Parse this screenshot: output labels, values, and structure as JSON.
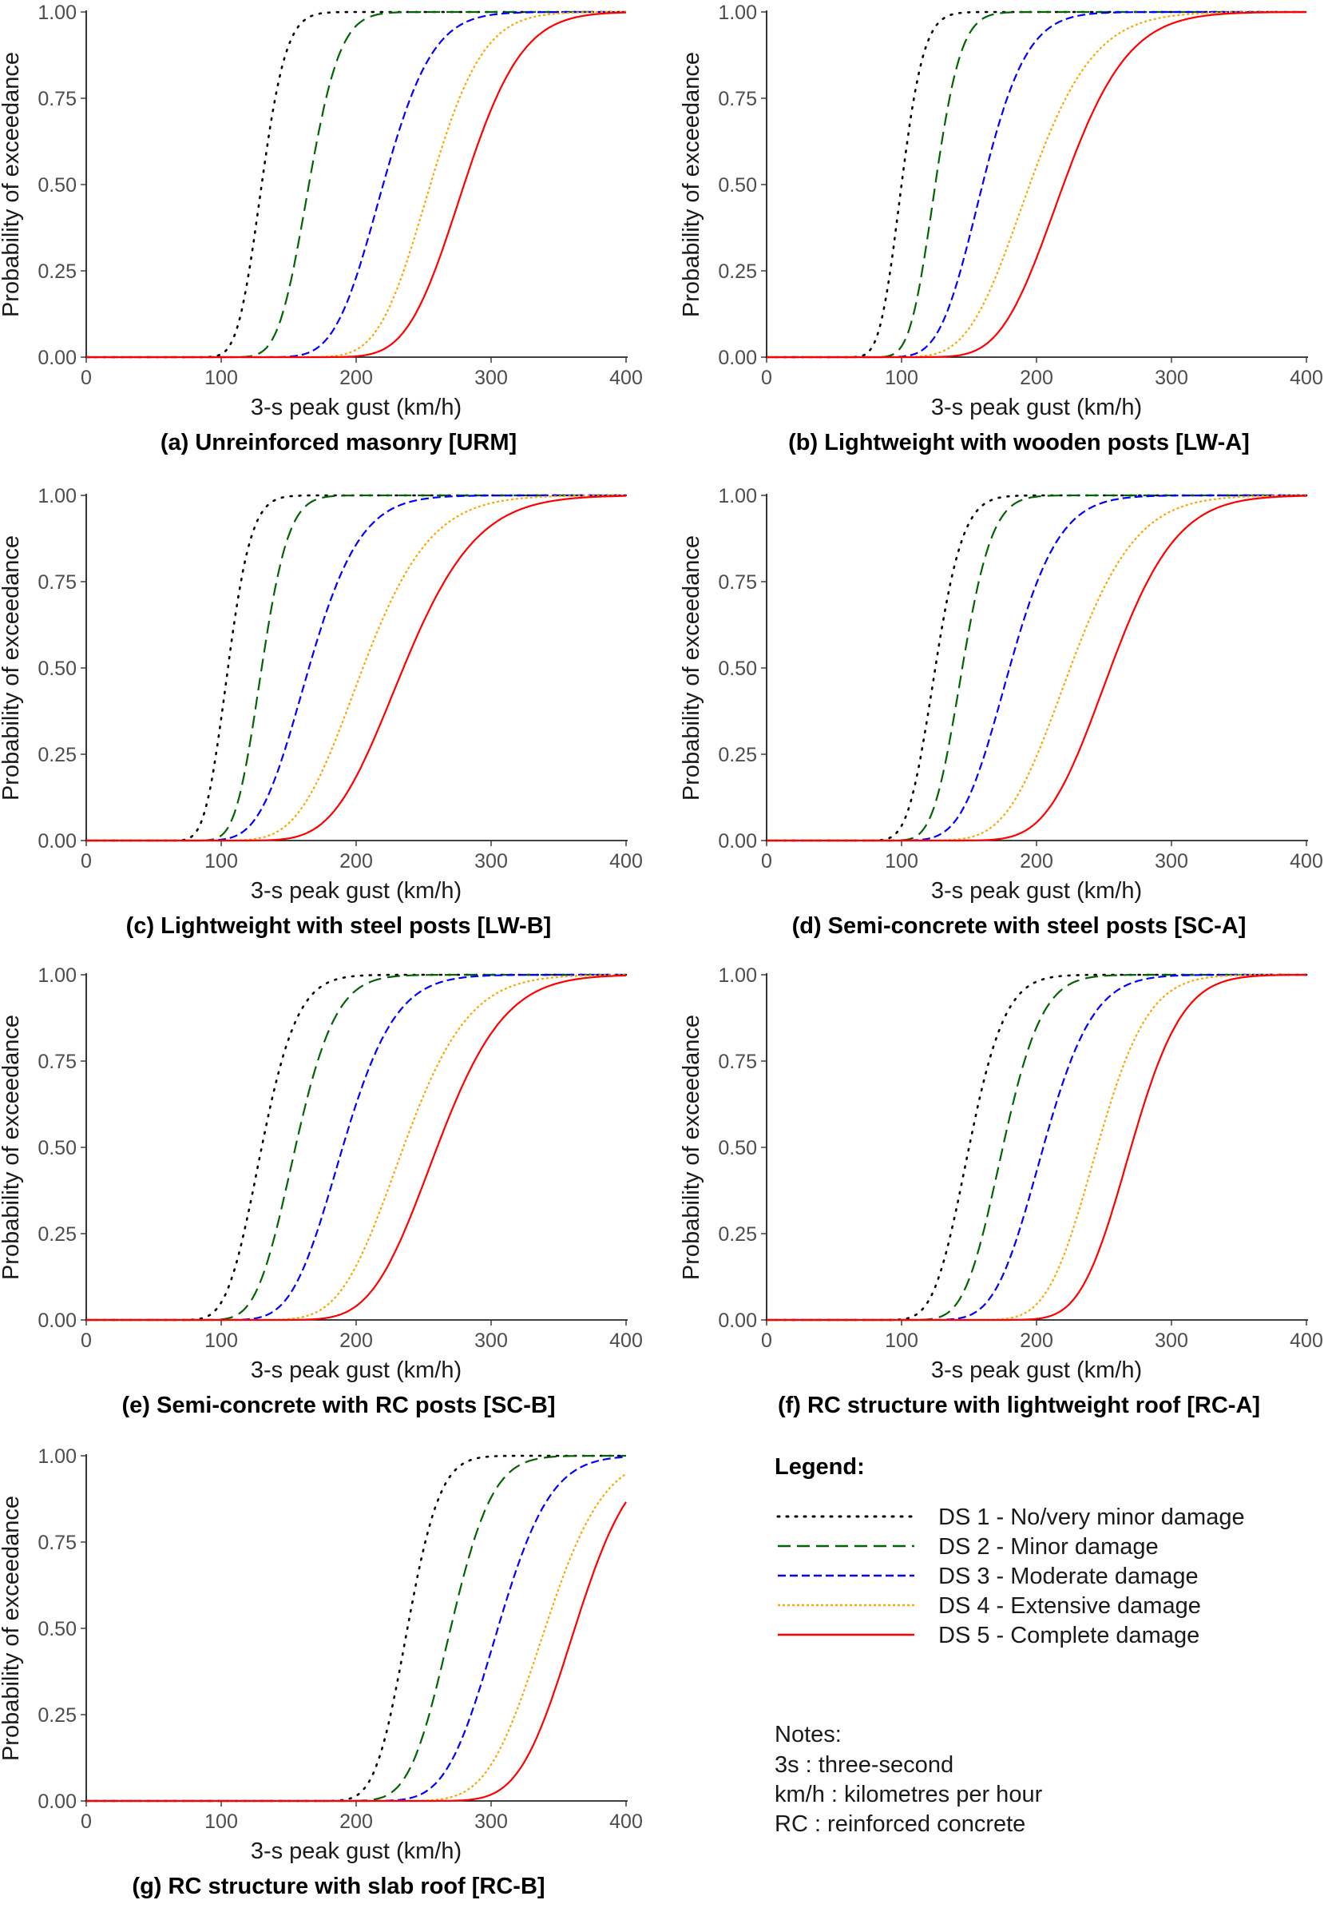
{
  "figure": {
    "legend_title": "Legend:",
    "notes_title": "Notes:",
    "notes": [
      "3s : three-second",
      "km/h : kilometres per hour",
      "RC : reinforced concrete"
    ]
  },
  "styles": {
    "DS1": {
      "color": "#000000",
      "dash": "2,9",
      "label": "DS 1 - No/very minor damage"
    },
    "DS2": {
      "color": "#006400",
      "dash": "16,8",
      "label": "DS 2 - Minor damage"
    },
    "DS3": {
      "color": "#0000FF",
      "dash": "10,5",
      "label": "DS 3 - Moderate damage"
    },
    "DS4": {
      "color": "#FFA500",
      "dash": "3,3",
      "label": "DS 4 - Extensive damage"
    },
    "DS5": {
      "color": "#FF0000",
      "dash": "",
      "label": "DS 5 - Complete damage"
    }
  },
  "chart_data": [
    {
      "type": "line",
      "panel": "a",
      "title": "(a) Unreinforced masonry [URM]",
      "xlabel": "3-s peak gust (km/h)",
      "ylabel": "Probability of exceedance",
      "xlim": [
        0,
        400
      ],
      "ylim": [
        0,
        1
      ],
      "xticks": [
        "0",
        "100",
        "200",
        "300",
        "400"
      ],
      "yticks": [
        "0.00",
        "0.25",
        "0.50",
        "0.75",
        "1.00"
      ],
      "series": [
        {
          "name": "DS 1 - No/very minor damage",
          "style": "DS1",
          "median": 130,
          "beta": 0.11
        },
        {
          "name": "DS 2 - Minor damage",
          "style": "DS2",
          "median": 165,
          "beta": 0.11
        },
        {
          "name": "DS 3 - Moderate damage",
          "style": "DS3",
          "median": 220,
          "beta": 0.13
        },
        {
          "name": "DS 4 - Extensive damage",
          "style": "DS4",
          "median": 255,
          "beta": 0.12
        },
        {
          "name": "DS 5 - Complete damage",
          "style": "DS5",
          "median": 280,
          "beta": 0.12
        }
      ]
    },
    {
      "type": "line",
      "panel": "b",
      "title": "(b) Lightweight with wooden posts [LW-A]",
      "xlabel": "3-s peak gust (km/h)",
      "ylabel": "Probability of exceedance",
      "xlim": [
        0,
        400
      ],
      "ylim": [
        0,
        1
      ],
      "xticks": [
        "0",
        "100",
        "200",
        "300",
        "400"
      ],
      "yticks": [
        "0.00",
        "0.25",
        "0.50",
        "0.75",
        "1.00"
      ],
      "series": [
        {
          "name": "DS 1 - No/very minor damage",
          "style": "DS1",
          "median": 100,
          "beta": 0.13
        },
        {
          "name": "DS 2 - Minor damage",
          "style": "DS2",
          "median": 125,
          "beta": 0.12
        },
        {
          "name": "DS 3 - Moderate damage",
          "style": "DS3",
          "median": 160,
          "beta": 0.16
        },
        {
          "name": "DS 4 - Extensive damage",
          "style": "DS4",
          "median": 195,
          "beta": 0.19
        },
        {
          "name": "DS 5 - Complete damage",
          "style": "DS5",
          "median": 220,
          "beta": 0.17
        }
      ]
    },
    {
      "type": "line",
      "panel": "c",
      "title": "(c) Lightweight with steel posts [LW-B]",
      "xlabel": "3-s peak gust (km/h)",
      "ylabel": "Probability of exceedance",
      "xlim": [
        0,
        400
      ],
      "ylim": [
        0,
        1
      ],
      "xticks": [
        "0",
        "100",
        "200",
        "300",
        "400"
      ],
      "yticks": [
        "0.00",
        "0.25",
        "0.50",
        "0.75",
        "1.00"
      ],
      "series": [
        {
          "name": "DS 1 - No/very minor damage",
          "style": "DS1",
          "median": 105,
          "beta": 0.13
        },
        {
          "name": "DS 2 - Minor damage",
          "style": "DS2",
          "median": 130,
          "beta": 0.12
        },
        {
          "name": "DS 3 - Moderate damage",
          "style": "DS3",
          "median": 165,
          "beta": 0.18
        },
        {
          "name": "DS 4 - Extensive damage",
          "style": "DS4",
          "median": 205,
          "beta": 0.19
        },
        {
          "name": "DS 5 - Complete damage",
          "style": "DS5",
          "median": 235,
          "beta": 0.18
        }
      ]
    },
    {
      "type": "line",
      "panel": "d",
      "title": "(d) Semi-concrete with steel posts [SC-A]",
      "xlabel": "3-s peak gust (km/h)",
      "ylabel": "Probability of exceedance",
      "xlim": [
        0,
        400
      ],
      "ylim": [
        0,
        1
      ],
      "xticks": [
        "0",
        "100",
        "200",
        "300",
        "400"
      ],
      "yticks": [
        "0.00",
        "0.25",
        "0.50",
        "0.75",
        "1.00"
      ],
      "series": [
        {
          "name": "DS 1 - No/very minor damage",
          "style": "DS1",
          "median": 125,
          "beta": 0.13
        },
        {
          "name": "DS 2 - Minor damage",
          "style": "DS2",
          "median": 145,
          "beta": 0.12
        },
        {
          "name": "DS 3 - Moderate damage",
          "style": "DS3",
          "median": 180,
          "beta": 0.16
        },
        {
          "name": "DS 4 - Extensive damage",
          "style": "DS4",
          "median": 225,
          "beta": 0.17
        },
        {
          "name": "DS 5 - Complete damage",
          "style": "DS5",
          "median": 255,
          "beta": 0.15
        }
      ]
    },
    {
      "type": "line",
      "panel": "e",
      "title": "(e) Semi-concrete with RC posts [SC-B]",
      "xlabel": "3-s peak gust (km/h)",
      "ylabel": "Probability of exceedance",
      "xlim": [
        0,
        400
      ],
      "ylim": [
        0,
        1
      ],
      "xticks": [
        "0",
        "100",
        "200",
        "300",
        "400"
      ],
      "yticks": [
        "0.00",
        "0.25",
        "0.50",
        "0.75",
        "1.00"
      ],
      "series": [
        {
          "name": "DS 1 - No/very minor damage",
          "style": "DS1",
          "median": 130,
          "beta": 0.16
        },
        {
          "name": "DS 2 - Minor damage",
          "style": "DS2",
          "median": 155,
          "beta": 0.15
        },
        {
          "name": "DS 3 - Moderate damage",
          "style": "DS3",
          "median": 190,
          "beta": 0.16
        },
        {
          "name": "DS 4 - Extensive damage",
          "style": "DS4",
          "median": 235,
          "beta": 0.16
        },
        {
          "name": "DS 5 - Complete damage",
          "style": "DS5",
          "median": 260,
          "beta": 0.15
        }
      ]
    },
    {
      "type": "line",
      "panel": "f",
      "title": "(f) RC structure with lightweight roof [RC-A]",
      "xlabel": "3-s peak gust (km/h)",
      "ylabel": "Probability of exceedance",
      "xlim": [
        0,
        400
      ],
      "ylim": [
        0,
        1
      ],
      "xticks": [
        "0",
        "100",
        "200",
        "300",
        "400"
      ],
      "yticks": [
        "0.00",
        "0.25",
        "0.50",
        "0.75",
        "1.00"
      ],
      "series": [
        {
          "name": "DS 1 - No/very minor damage",
          "style": "DS1",
          "median": 150,
          "beta": 0.14
        },
        {
          "name": "DS 2 - Minor damage",
          "style": "DS2",
          "median": 175,
          "beta": 0.13
        },
        {
          "name": "DS 3 - Moderate damage",
          "style": "DS3",
          "median": 205,
          "beta": 0.14
        },
        {
          "name": "DS 4 - Extensive damage",
          "style": "DS4",
          "median": 245,
          "beta": 0.12
        },
        {
          "name": "DS 5 - Complete damage",
          "style": "DS5",
          "median": 270,
          "beta": 0.11
        }
      ]
    },
    {
      "type": "line",
      "panel": "g",
      "title": "(g) RC structure with slab roof [RC-B]",
      "xlabel": "3-s peak gust (km/h)",
      "ylabel": "Probability of exceedance",
      "xlim": [
        0,
        400
      ],
      "ylim": [
        0,
        1
      ],
      "xticks": [
        "0",
        "100",
        "200",
        "300",
        "400"
      ],
      "yticks": [
        "0.00",
        "0.25",
        "0.50",
        "0.75",
        "1.00"
      ],
      "series": [
        {
          "name": "DS 1 - No/very minor damage",
          "style": "DS1",
          "median": 238,
          "beta": 0.08
        },
        {
          "name": "DS 2 - Minor damage",
          "style": "DS2",
          "median": 270,
          "beta": 0.09
        },
        {
          "name": "DS 3 - Moderate damage",
          "style": "DS3",
          "median": 305,
          "beta": 0.1
        },
        {
          "name": "DS 4 - Extensive damage",
          "style": "DS4",
          "median": 340,
          "beta": 0.1
        },
        {
          "name": "DS 5 - Complete damage",
          "style": "DS5",
          "median": 362,
          "beta": 0.09
        }
      ]
    }
  ]
}
